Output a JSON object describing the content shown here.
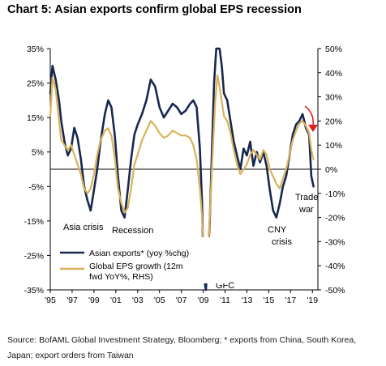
{
  "title": "Chart 5: Asian exports confirm global EPS recession",
  "source": "Source: BofAML Global Investment Strategy, Bloomberg; * exports from China, South Korea, Japan; export orders from Taiwan",
  "colors": {
    "navy": "#17284f",
    "gold": "#d9b25a",
    "red": "#e02020",
    "axis": "#000000"
  },
  "chart_data": {
    "type": "line",
    "title": "Chart 5: Asian exports confirm global EPS recession",
    "xlabel": "",
    "ylabel": "",
    "x_ticks": [
      "'95",
      "'97",
      "'99",
      "'01",
      "'03",
      "'05",
      "'07",
      "'09",
      "'11",
      "'13",
      "'15",
      "'17",
      "'19"
    ],
    "xlim": [
      1995,
      2019.5
    ],
    "ylim_left": [
      -35,
      35
    ],
    "ylim_right": [
      -50,
      50
    ],
    "yticks_left": [
      "35%",
      "25%",
      "15%",
      "5%",
      "-5%",
      "-15%",
      "-25%",
      "-35%"
    ],
    "yticks_right": [
      "50%",
      "40%",
      "30%",
      "20%",
      "10%",
      "0%",
      "-10%",
      "-20%",
      "-30%",
      "-40%",
      "-50%"
    ],
    "legend": [
      "Asian exports* (yoy %chg)",
      "Global EPS growth (12m fwd YoY%, RHS)"
    ],
    "legend_placement": "bottom-left",
    "series": [
      {
        "name": "Asian exports* (yoy %chg)",
        "axis": "left",
        "color": "#17284f",
        "points": [
          [
            1995.0,
            22
          ],
          [
            1995.2,
            30
          ],
          [
            1995.5,
            26
          ],
          [
            1995.8,
            20
          ],
          [
            1996.0,
            14
          ],
          [
            1996.3,
            8
          ],
          [
            1996.6,
            4
          ],
          [
            1996.9,
            6
          ],
          [
            1997.2,
            12
          ],
          [
            1997.5,
            9
          ],
          [
            1997.8,
            3
          ],
          [
            1998.1,
            -5
          ],
          [
            1998.4,
            -9
          ],
          [
            1998.7,
            -12
          ],
          [
            1999.0,
            -6
          ],
          [
            1999.3,
            0
          ],
          [
            1999.6,
            8
          ],
          [
            2000.0,
            16
          ],
          [
            2000.3,
            20
          ],
          [
            2000.6,
            18
          ],
          [
            2000.9,
            10
          ],
          [
            2001.2,
            -2
          ],
          [
            2001.5,
            -12
          ],
          [
            2001.8,
            -14
          ],
          [
            2002.1,
            -6
          ],
          [
            2002.4,
            3
          ],
          [
            2002.7,
            10
          ],
          [
            2003.0,
            13
          ],
          [
            2003.4,
            16
          ],
          [
            2003.8,
            20
          ],
          [
            2004.2,
            26
          ],
          [
            2004.6,
            24
          ],
          [
            2005.0,
            18
          ],
          [
            2005.4,
            15
          ],
          [
            2005.8,
            17
          ],
          [
            2006.2,
            19
          ],
          [
            2006.6,
            18
          ],
          [
            2007.0,
            16
          ],
          [
            2007.4,
            17
          ],
          [
            2007.8,
            19
          ],
          [
            2008.1,
            20
          ],
          [
            2008.4,
            18
          ],
          [
            2008.7,
            6
          ],
          [
            2008.9,
            -10
          ],
          [
            2009.0,
            -25
          ],
          [
            2009.1,
            -32
          ],
          [
            2009.25,
            -35
          ],
          [
            2009.4,
            -28
          ],
          [
            2009.6,
            -15
          ],
          [
            2009.8,
            5
          ],
          [
            2010.0,
            25
          ],
          [
            2010.2,
            35
          ],
          [
            2010.5,
            35
          ],
          [
            2010.7,
            30
          ],
          [
            2010.9,
            22
          ],
          [
            2011.2,
            20
          ],
          [
            2011.5,
            14
          ],
          [
            2011.8,
            8
          ],
          [
            2012.1,
            4
          ],
          [
            2012.4,
            0
          ],
          [
            2012.7,
            6
          ],
          [
            2013.0,
            4
          ],
          [
            2013.3,
            8
          ],
          [
            2013.6,
            1
          ],
          [
            2013.9,
            5
          ],
          [
            2014.2,
            2
          ],
          [
            2014.5,
            5
          ],
          [
            2014.8,
            1
          ],
          [
            2015.1,
            -6
          ],
          [
            2015.4,
            -12
          ],
          [
            2015.7,
            -14
          ],
          [
            2016.0,
            -10
          ],
          [
            2016.3,
            -5
          ],
          [
            2016.6,
            -2
          ],
          [
            2016.9,
            4
          ],
          [
            2017.2,
            10
          ],
          [
            2017.5,
            13
          ],
          [
            2017.8,
            14
          ],
          [
            2018.1,
            16
          ],
          [
            2018.4,
            12
          ],
          [
            2018.7,
            10
          ],
          [
            2018.9,
            -2
          ],
          [
            2019.1,
            -5
          ]
        ]
      },
      {
        "name": "Global EPS growth (12m fwd YoY%, RHS)",
        "axis": "right",
        "color": "#d9b25a",
        "points": [
          [
            1995.0,
            22
          ],
          [
            1995.2,
            38
          ],
          [
            1995.5,
            33
          ],
          [
            1995.8,
            20
          ],
          [
            1996.0,
            12
          ],
          [
            1996.3,
            10
          ],
          [
            1996.6,
            8
          ],
          [
            1996.9,
            10
          ],
          [
            1997.2,
            6
          ],
          [
            1997.5,
            2
          ],
          [
            1997.8,
            -2
          ],
          [
            1998.1,
            -8
          ],
          [
            1998.4,
            -10
          ],
          [
            1998.7,
            -8
          ],
          [
            1999.0,
            -2
          ],
          [
            1999.3,
            6
          ],
          [
            1999.6,
            12
          ],
          [
            2000.0,
            16
          ],
          [
            2000.3,
            17
          ],
          [
            2000.6,
            14
          ],
          [
            2000.9,
            5
          ],
          [
            2001.2,
            -8
          ],
          [
            2001.5,
            -14
          ],
          [
            2001.8,
            -18
          ],
          [
            2002.1,
            -16
          ],
          [
            2002.4,
            -8
          ],
          [
            2002.7,
            2
          ],
          [
            2003.0,
            6
          ],
          [
            2003.4,
            12
          ],
          [
            2003.8,
            16
          ],
          [
            2004.2,
            20
          ],
          [
            2004.6,
            18
          ],
          [
            2005.0,
            15
          ],
          [
            2005.4,
            13
          ],
          [
            2005.8,
            14
          ],
          [
            2006.2,
            16
          ],
          [
            2006.6,
            15
          ],
          [
            2007.0,
            14
          ],
          [
            2007.4,
            14
          ],
          [
            2007.8,
            13
          ],
          [
            2008.1,
            10
          ],
          [
            2008.4,
            4
          ],
          [
            2008.7,
            -8
          ],
          [
            2008.9,
            -20
          ],
          [
            2009.0,
            -30
          ],
          [
            2009.15,
            -38
          ],
          [
            2009.3,
            -42
          ],
          [
            2009.5,
            -30
          ],
          [
            2009.7,
            -10
          ],
          [
            2009.9,
            10
          ],
          [
            2010.1,
            28
          ],
          [
            2010.3,
            39
          ],
          [
            2010.5,
            34
          ],
          [
            2010.7,
            28
          ],
          [
            2010.9,
            22
          ],
          [
            2011.2,
            20
          ],
          [
            2011.5,
            15
          ],
          [
            2011.8,
            8
          ],
          [
            2012.1,
            2
          ],
          [
            2012.4,
            -2
          ],
          [
            2012.7,
            0
          ],
          [
            2013.0,
            2
          ],
          [
            2013.3,
            6
          ],
          [
            2013.6,
            8
          ],
          [
            2013.9,
            6
          ],
          [
            2014.2,
            4
          ],
          [
            2014.5,
            8
          ],
          [
            2014.8,
            6
          ],
          [
            2015.1,
            0
          ],
          [
            2015.4,
            -3
          ],
          [
            2015.7,
            -6
          ],
          [
            2016.0,
            -8
          ],
          [
            2016.3,
            -4
          ],
          [
            2016.6,
            0
          ],
          [
            2016.9,
            6
          ],
          [
            2017.2,
            12
          ],
          [
            2017.5,
            16
          ],
          [
            2017.8,
            19
          ],
          [
            2018.1,
            20
          ],
          [
            2018.4,
            18
          ],
          [
            2018.7,
            15
          ],
          [
            2018.9,
            8
          ],
          [
            2019.1,
            4
          ]
        ]
      }
    ],
    "annotations": [
      "Asia crisis",
      "Recession",
      "GFC",
      "CNY crisis",
      "Trade war"
    ]
  }
}
